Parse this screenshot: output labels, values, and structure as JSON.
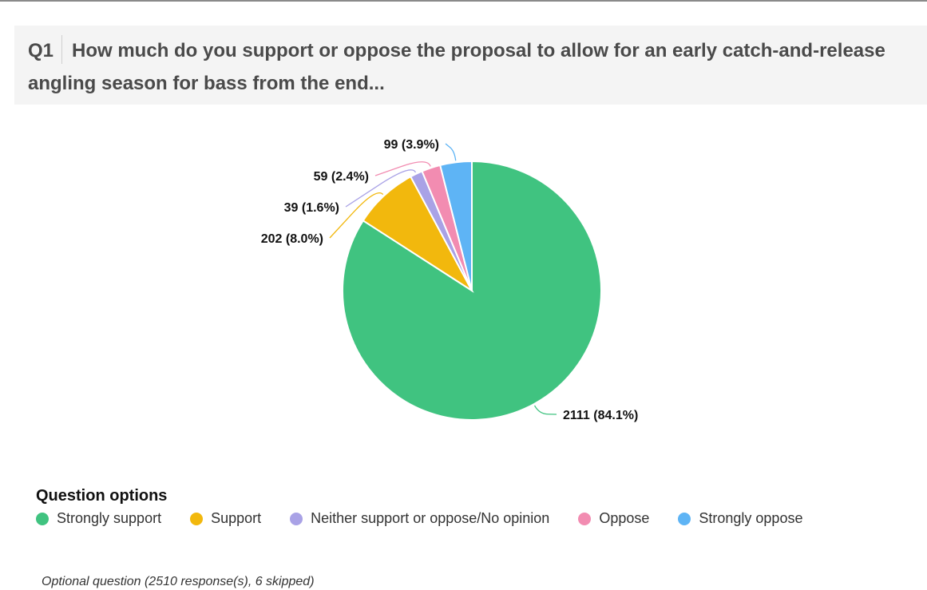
{
  "question": {
    "number": "Q1",
    "text": "How much do you support or oppose the proposal to allow for an early catch-and-release angling season for bass from the end..."
  },
  "chart_data": {
    "type": "pie",
    "title": "",
    "slices": [
      {
        "name": "Strongly support",
        "value": 2111,
        "percent": 84.1,
        "label": "2111 (84.1%)",
        "color": "#40c380"
      },
      {
        "name": "Support",
        "value": 202,
        "percent": 8.0,
        "label": "202 (8.0%)",
        "color": "#f2b80d"
      },
      {
        "name": "Neither support or oppose/No opinion",
        "value": 39,
        "percent": 1.6,
        "label": "39 (1.6%)",
        "color": "#a9a2e6"
      },
      {
        "name": "Oppose",
        "value": 59,
        "percent": 2.4,
        "label": "59 (2.4%)",
        "color": "#f28cb1"
      },
      {
        "name": "Strongly oppose",
        "value": 99,
        "percent": 3.9,
        "label": "99 (3.9%)",
        "color": "#5eb4f5"
      }
    ],
    "legend_position": "bottom-left"
  },
  "legend": {
    "title": "Question options",
    "items": [
      {
        "label": "Strongly support",
        "color": "#40c380"
      },
      {
        "label": "Support",
        "color": "#f2b80d"
      },
      {
        "label": "Neither support or oppose/No opinion",
        "color": "#a9a2e6"
      },
      {
        "label": "Oppose",
        "color": "#f28cb1"
      },
      {
        "label": "Strongly oppose",
        "color": "#5eb4f5"
      }
    ]
  },
  "footer": {
    "note": "Optional question (2510 response(s), 6 skipped)"
  }
}
